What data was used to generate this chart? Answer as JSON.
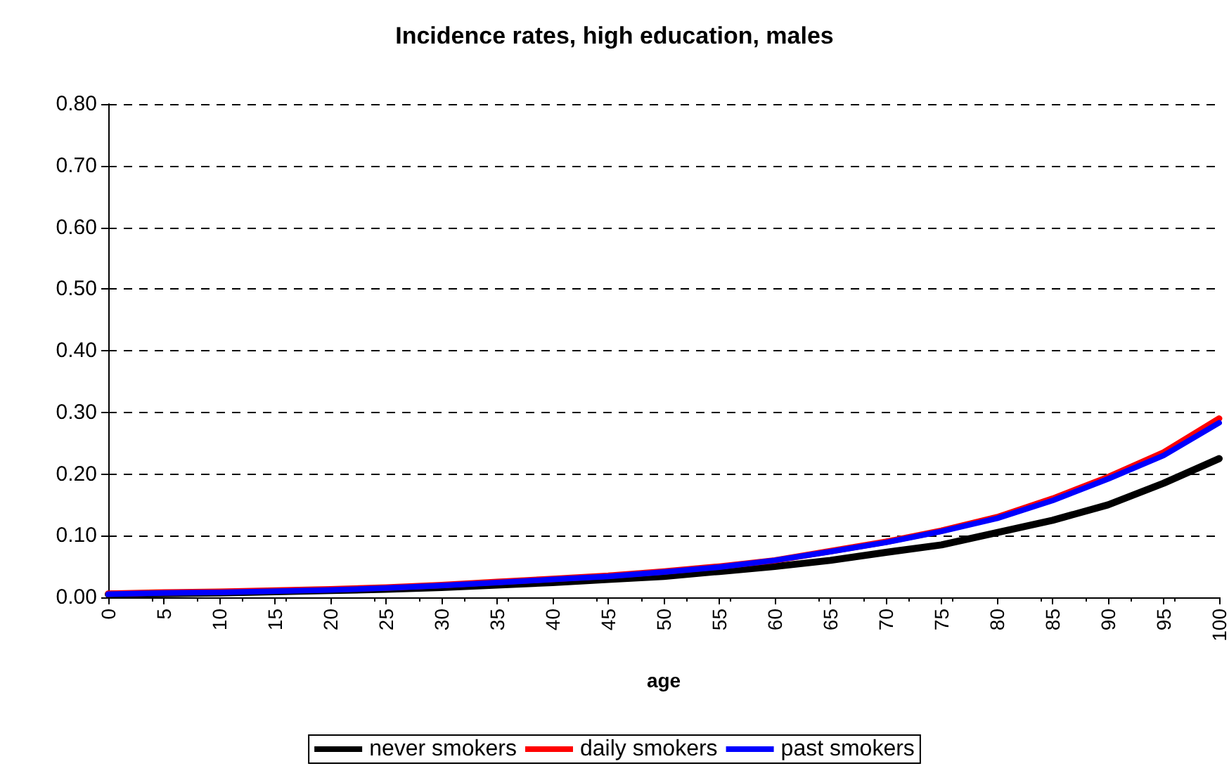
{
  "chart_data": {
    "type": "line",
    "title": "Incidence rates, high education, males",
    "xlabel": "age",
    "x": [
      0,
      5,
      10,
      15,
      20,
      25,
      30,
      35,
      40,
      45,
      50,
      55,
      60,
      65,
      70,
      75,
      80,
      85,
      90,
      95,
      100
    ],
    "series": [
      {
        "name": "never smokers",
        "color": "#000000",
        "values": [
          0.005,
          0.006,
          0.007,
          0.009,
          0.011,
          0.013,
          0.016,
          0.02,
          0.024,
          0.029,
          0.034,
          0.042,
          0.05,
          0.06,
          0.073,
          0.085,
          0.105,
          0.125,
          0.15,
          0.185,
          0.225
        ]
      },
      {
        "name": "daily smokers",
        "color": "#ff0000",
        "values": [
          0.006,
          0.008,
          0.009,
          0.011,
          0.013,
          0.016,
          0.02,
          0.025,
          0.03,
          0.035,
          0.042,
          0.05,
          0.06,
          0.075,
          0.09,
          0.108,
          0.13,
          0.16,
          0.195,
          0.235,
          0.29
        ]
      },
      {
        "name": "past smokers",
        "color": "#0000ff",
        "values": [
          0.005,
          0.007,
          0.008,
          0.01,
          0.012,
          0.015,
          0.019,
          0.024,
          0.029,
          0.034,
          0.041,
          0.049,
          0.06,
          0.074,
          0.089,
          0.107,
          0.128,
          0.157,
          0.192,
          0.23,
          0.283
        ]
      }
    ],
    "xlim": [
      0,
      100
    ],
    "xticks": [
      0,
      5,
      10,
      15,
      20,
      25,
      30,
      35,
      40,
      45,
      50,
      55,
      60,
      65,
      70,
      75,
      80,
      85,
      90,
      95,
      100
    ],
    "ylim": [
      0,
      0.8
    ],
    "yticks": [
      {
        "value": 0,
        "label": "0.00"
      },
      {
        "value": 0.1,
        "label": "0.10"
      },
      {
        "value": 0.2,
        "label": "0.20"
      },
      {
        "value": 0.3,
        "label": "0.30"
      },
      {
        "value": 0.4,
        "label": "0.40"
      },
      {
        "value": 0.5,
        "label": "0.50"
      },
      {
        "value": 0.6,
        "label": "0.60"
      },
      {
        "value": 0.7,
        "label": "0.70"
      },
      {
        "value": 0.8,
        "label": "0.80"
      }
    ],
    "grid": "y",
    "legend": "bottom",
    "marker": "none",
    "line_style": "solid"
  }
}
